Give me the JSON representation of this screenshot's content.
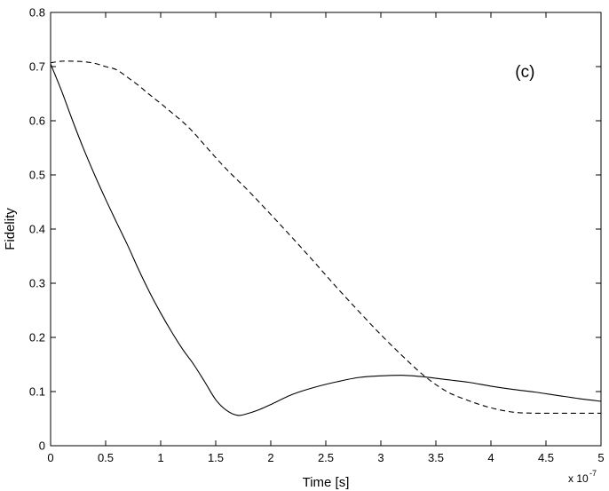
{
  "chart_data": {
    "type": "line",
    "title": "",
    "panel_label": "(c)",
    "xlabel": "Time [s]",
    "ylabel": "Fidelity",
    "x_multiplier": {
      "base": "x 10",
      "exponent": "-7"
    },
    "xlim": [
      0,
      5
    ],
    "ylim": [
      0,
      0.8
    ],
    "x_ticks": [
      "0",
      "0.5",
      "1",
      "1.5",
      "2",
      "2.5",
      "3",
      "3.5",
      "4",
      "4.5",
      "5"
    ],
    "y_ticks": [
      "0",
      "0.1",
      "0.2",
      "0.3",
      "0.4",
      "0.5",
      "0.6",
      "0.7",
      "0.8"
    ],
    "grid": false,
    "legend": "none",
    "series": [
      {
        "style": "solid",
        "color": "#000000",
        "x": [
          0,
          0.1,
          0.2,
          0.3,
          0.4,
          0.5,
          0.6,
          0.7,
          0.8,
          0.9,
          1.0,
          1.1,
          1.2,
          1.3,
          1.4,
          1.5,
          1.6,
          1.7,
          1.8,
          1.9,
          2.0,
          2.2,
          2.4,
          2.6,
          2.8,
          3.0,
          3.2,
          3.4,
          3.6,
          3.8,
          4.0,
          4.2,
          4.4,
          4.6,
          4.8,
          5.0
        ],
        "y": [
          0.705,
          0.655,
          0.6,
          0.548,
          0.5,
          0.455,
          0.412,
          0.37,
          0.325,
          0.283,
          0.245,
          0.21,
          0.178,
          0.15,
          0.118,
          0.085,
          0.065,
          0.056,
          0.06,
          0.067,
          0.076,
          0.095,
          0.108,
          0.118,
          0.126,
          0.129,
          0.13,
          0.127,
          0.122,
          0.117,
          0.11,
          0.104,
          0.099,
          0.093,
          0.087,
          0.082
        ]
      },
      {
        "style": "dashed",
        "color": "#000000",
        "x": [
          0,
          0.1,
          0.2,
          0.3,
          0.4,
          0.5,
          0.6,
          0.7,
          0.8,
          0.9,
          1.0,
          1.1,
          1.2,
          1.3,
          1.4,
          1.5,
          1.6,
          1.7,
          1.8,
          2.0,
          2.2,
          2.4,
          2.6,
          2.8,
          3.0,
          3.2,
          3.4,
          3.6,
          3.8,
          4.0,
          4.2,
          4.4,
          4.6,
          4.8,
          5.0
        ],
        "y": [
          0.707,
          0.71,
          0.71,
          0.709,
          0.706,
          0.7,
          0.694,
          0.68,
          0.665,
          0.648,
          0.632,
          0.615,
          0.598,
          0.578,
          0.555,
          0.532,
          0.51,
          0.49,
          0.47,
          0.427,
          0.383,
          0.338,
          0.292,
          0.248,
          0.205,
          0.165,
          0.128,
          0.1,
          0.083,
          0.07,
          0.062,
          0.06,
          0.06,
          0.06,
          0.06
        ]
      }
    ]
  }
}
